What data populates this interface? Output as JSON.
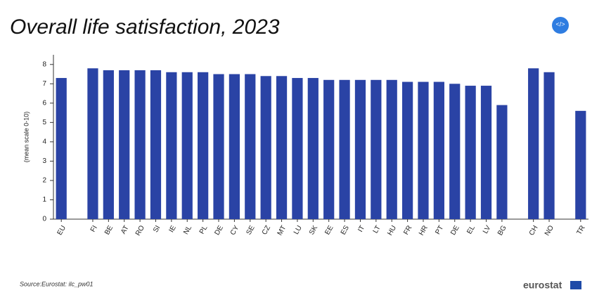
{
  "chart_data": {
    "type": "bar",
    "title": "Overall life satisfaction, 2023",
    "y_label": "(mean scale 0-10)",
    "source": "Source:Eurostat: ilc_pw01",
    "brand": "eurostat",
    "categories": [
      "EU",
      null,
      "FI",
      "BE",
      "AT",
      "RO",
      "SI",
      "IE",
      "NL",
      "PL",
      "DE",
      "CY",
      "SE",
      "CZ",
      "MT",
      "LU",
      "SK",
      "EE",
      "ES",
      "IT",
      "LT",
      "HU",
      "FR",
      "HR",
      "PT",
      "DE",
      "EL",
      "LV",
      "BG",
      null,
      "CH",
      "NO",
      null,
      "TR"
    ],
    "values": [
      7.3,
      null,
      7.8,
      7.7,
      7.7,
      7.7,
      7.7,
      7.6,
      7.6,
      7.6,
      7.5,
      7.5,
      7.5,
      7.4,
      7.4,
      7.3,
      7.3,
      7.2,
      7.2,
      7.2,
      7.2,
      7.2,
      7.1,
      7.1,
      7.1,
      7.0,
      6.9,
      6.9,
      5.9,
      null,
      7.8,
      7.6,
      null,
      5.6
    ],
    "color": "#2a43a5",
    "ylim": [
      0,
      8.5
    ],
    "yticks": [
      0,
      1,
      2,
      3,
      4,
      5,
      6,
      7,
      8
    ],
    "grid": false
  }
}
